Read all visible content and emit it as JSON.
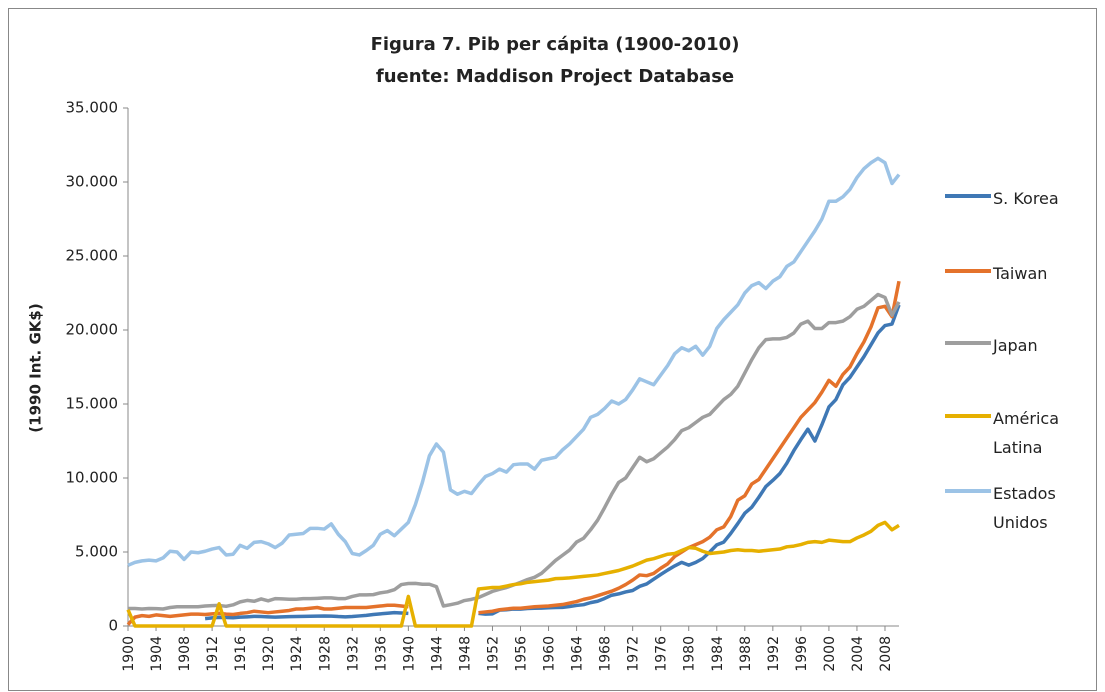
{
  "chart_data": {
    "type": "line",
    "title": "Figura 7. Pib per cápita (1900-2010)",
    "subtitle": "fuente: Maddison Project Database",
    "y_label": "(1990 Int. GK$)",
    "x": [
      1900,
      1901,
      1902,
      1903,
      1904,
      1905,
      1906,
      1907,
      1908,
      1909,
      1910,
      1911,
      1912,
      1913,
      1914,
      1915,
      1916,
      1917,
      1918,
      1919,
      1920,
      1921,
      1922,
      1923,
      1924,
      1925,
      1926,
      1927,
      1928,
      1929,
      1930,
      1931,
      1932,
      1933,
      1934,
      1935,
      1936,
      1937,
      1938,
      1939,
      1940,
      1941,
      1942,
      1943,
      1944,
      1945,
      1946,
      1947,
      1948,
      1949,
      1950,
      1951,
      1952,
      1953,
      1954,
      1955,
      1956,
      1957,
      1958,
      1959,
      1960,
      1961,
      1962,
      1963,
      1964,
      1965,
      1966,
      1967,
      1968,
      1969,
      1970,
      1971,
      1972,
      1973,
      1974,
      1975,
      1976,
      1977,
      1978,
      1979,
      1980,
      1981,
      1982,
      1983,
      1984,
      1985,
      1986,
      1987,
      1988,
      1989,
      1990,
      1991,
      1992,
      1993,
      1994,
      1995,
      1996,
      1997,
      1998,
      1999,
      2000,
      2001,
      2002,
      2003,
      2004,
      2005,
      2006,
      2007,
      2008,
      2009,
      2010
    ],
    "xlim": [
      1900,
      2010
    ],
    "xticks": [
      1900,
      1904,
      1908,
      1912,
      1916,
      1920,
      1924,
      1928,
      1932,
      1936,
      1940,
      1944,
      1948,
      1952,
      1956,
      1960,
      1964,
      1968,
      1972,
      1976,
      1980,
      1984,
      1988,
      1992,
      1996,
      2000,
      2004,
      2008
    ],
    "ylim": [
      0,
      35000
    ],
    "yticks": [
      0,
      {
        "value": 5000,
        "label": "5.000"
      },
      {
        "value": 10000,
        "label": "10.000"
      },
      {
        "value": 15000,
        "label": "15.000"
      },
      {
        "value": 20000,
        "label": "20.000"
      },
      {
        "value": 25000,
        "label": "25.000"
      },
      {
        "value": 30000,
        "label": "30.000"
      },
      {
        "value": 35000,
        "label": "35.000"
      }
    ],
    "grid": false,
    "legend": "right",
    "series": [
      {
        "name": "S. Korea",
        "color": "#3f78b5",
        "values": [
          null,
          null,
          null,
          null,
          null,
          null,
          null,
          null,
          null,
          null,
          null,
          500,
          550,
          580,
          570,
          560,
          600,
          620,
          650,
          640,
          620,
          600,
          620,
          630,
          640,
          650,
          660,
          670,
          680,
          670,
          640,
          620,
          640,
          680,
          720,
          780,
          820,
          860,
          900,
          880,
          850,
          null,
          null,
          null,
          null,
          null,
          null,
          null,
          null,
          null,
          850,
          800,
          820,
          1070,
          1100,
          1150,
          1140,
          1180,
          1200,
          1210,
          1230,
          1250,
          1260,
          1320,
          1390,
          1440,
          1580,
          1670,
          1860,
          2080,
          2170,
          2300,
          2400,
          2680,
          2840,
          3160,
          3480,
          3780,
          4060,
          4300,
          4110,
          4300,
          4560,
          5000,
          5480,
          5670,
          6260,
          6920,
          7620,
          8030,
          8700,
          9420,
          9840,
          10300,
          11000,
          11850,
          12600,
          13300,
          12500,
          13600,
          14800,
          15300,
          16300,
          16800,
          17500,
          18200,
          19000,
          19800,
          20300,
          20400,
          21700
        ]
      },
      {
        "name": "Taiwan",
        "color": "#e4722b",
        "values": [
          100,
          600,
          700,
          650,
          750,
          700,
          650,
          700,
          750,
          800,
          800,
          780,
          820,
          850,
          800,
          780,
          850,
          900,
          1000,
          950,
          900,
          950,
          1000,
          1050,
          1150,
          1150,
          1200,
          1250,
          1150,
          1150,
          1200,
          1250,
          1250,
          1250,
          1250,
          1300,
          1350,
          1400,
          1400,
          1350,
          1300,
          null,
          null,
          null,
          null,
          null,
          null,
          null,
          null,
          null,
          900,
          950,
          1000,
          1100,
          1150,
          1200,
          1200,
          1250,
          1300,
          1330,
          1350,
          1400,
          1450,
          1550,
          1650,
          1800,
          1900,
          2050,
          2200,
          2350,
          2550,
          2800,
          3100,
          3450,
          3400,
          3550,
          3900,
          4200,
          4700,
          5000,
          5300,
          5500,
          5700,
          6000,
          6500,
          6700,
          7400,
          8500,
          8800,
          9600,
          9900,
          10600,
          11300,
          12000,
          12700,
          13400,
          14100,
          14600,
          15100,
          15800,
          16600,
          16200,
          17000,
          17500,
          18400,
          19200,
          20200,
          21500,
          21600,
          20900,
          23300
        ]
      },
      {
        "name": "Japan",
        "color": "#9e9e9e",
        "values": [
          1180,
          1180,
          1150,
          1180,
          1170,
          1150,
          1250,
          1300,
          1300,
          1300,
          1300,
          1350,
          1380,
          1390,
          1330,
          1430,
          1630,
          1730,
          1670,
          1830,
          1700,
          1850,
          1830,
          1810,
          1810,
          1850,
          1850,
          1870,
          1900,
          1900,
          1850,
          1850,
          2000,
          2100,
          2100,
          2120,
          2240,
          2310,
          2450,
          2800,
          2870,
          2880,
          2820,
          2820,
          2660,
          1350,
          1440,
          1540,
          1720,
          1800,
          1920,
          2130,
          2340,
          2480,
          2600,
          2770,
          2950,
          3140,
          3290,
          3560,
          3990,
          4430,
          4780,
          5130,
          5670,
          5930,
          6500,
          7150,
          8000,
          8900,
          9700,
          10000,
          10700,
          11400,
          11100,
          11300,
          11700,
          12100,
          12600,
          13200,
          13400,
          13750,
          14100,
          14300,
          14800,
          15300,
          15650,
          16200,
          17100,
          18000,
          18800,
          19350,
          19400,
          19400,
          19500,
          19800,
          20400,
          20600,
          20100,
          20100,
          20500,
          20500,
          20600,
          20900,
          21400,
          21600,
          22000,
          22400,
          22200,
          21000,
          21900
        ]
      },
      {
        "name": "América Latina",
        "color": "#e6b000",
        "values": [
          1100,
          0,
          0,
          0,
          0,
          0,
          0,
          0,
          0,
          0,
          0,
          0,
          0,
          1500,
          0,
          0,
          0,
          0,
          0,
          0,
          0,
          0,
          0,
          0,
          0,
          0,
          0,
          0,
          0,
          0,
          0,
          0,
          0,
          0,
          0,
          0,
          0,
          0,
          0,
          0,
          2000,
          0,
          0,
          0,
          0,
          0,
          0,
          0,
          0,
          0,
          2500,
          2550,
          2600,
          2600,
          2700,
          2800,
          2850,
          2950,
          3000,
          3050,
          3100,
          3200,
          3220,
          3250,
          3300,
          3350,
          3400,
          3450,
          3550,
          3650,
          3750,
          3900,
          4050,
          4250,
          4450,
          4550,
          4700,
          4850,
          4900,
          5100,
          5300,
          5250,
          5050,
          4900,
          4950,
          5000,
          5100,
          5150,
          5100,
          5100,
          5050,
          5100,
          5150,
          5200,
          5350,
          5400,
          5500,
          5650,
          5700,
          5650,
          5800,
          5750,
          5700,
          5700,
          5950,
          6150,
          6400,
          6800,
          7000,
          6500,
          6800
        ]
      },
      {
        "name": "Estados Unidos",
        "color": "#9cc3e6",
        "values": [
          4100,
          4300,
          4400,
          4450,
          4400,
          4600,
          5050,
          5000,
          4500,
          5000,
          4950,
          5050,
          5200,
          5300,
          4800,
          4850,
          5450,
          5250,
          5650,
          5700,
          5550,
          5300,
          5600,
          6150,
          6200,
          6250,
          6600,
          6600,
          6550,
          6900,
          6200,
          5700,
          4900,
          4800,
          5100,
          5450,
          6200,
          6450,
          6100,
          6550,
          7000,
          8200,
          9700,
          11500,
          12300,
          11750,
          9200,
          8900,
          9100,
          8950,
          9550,
          10100,
          10300,
          10600,
          10400,
          10900,
          10950,
          10950,
          10600,
          11200,
          11300,
          11400,
          11900,
          12300,
          12800,
          13300,
          14100,
          14300,
          14700,
          15200,
          15000,
          15300,
          15950,
          16700,
          16500,
          16300,
          16950,
          17600,
          18400,
          18800,
          18600,
          18900,
          18300,
          18900,
          20100,
          20700,
          21200,
          21700,
          22500,
          23000,
          23200,
          22800,
          23300,
          23600,
          24300,
          24600,
          25300,
          26000,
          26700,
          27500,
          28700,
          28700,
          29000,
          29500,
          30300,
          30900,
          31300,
          31600,
          31300,
          29900,
          30500
        ]
      }
    ]
  }
}
